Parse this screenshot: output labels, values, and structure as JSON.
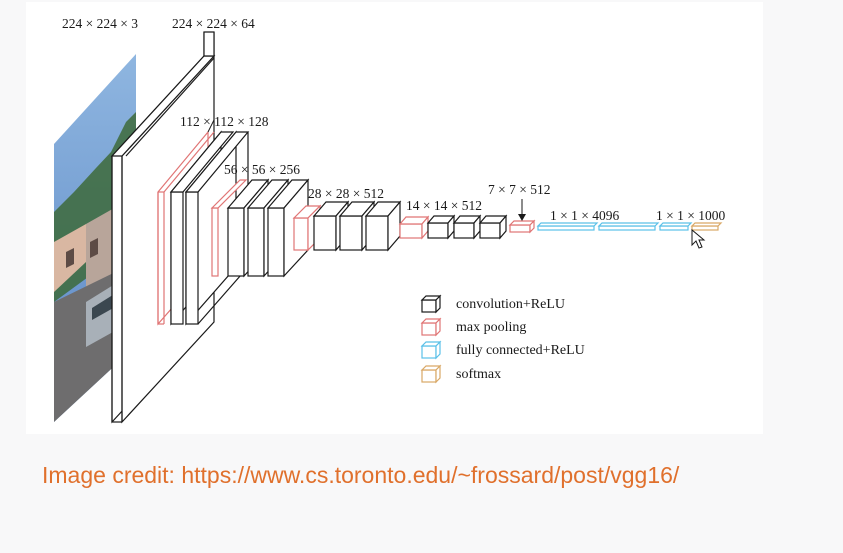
{
  "diagram": {
    "dimension_labels": {
      "input": "224 × 224 × 3",
      "conv1": "224 × 224 × 64",
      "conv2": "112 × 112 × 128",
      "conv3": "56 × 56 × 256",
      "conv4": "28 × 28 × 512",
      "conv5": "14 × 14 × 512",
      "pool5": "7 × 7 × 512",
      "fc": "1 × 1 × 4096",
      "softmax": "1 × 1 × 1000"
    },
    "legend": [
      {
        "label": "convolution+ReLU",
        "color": "#333333"
      },
      {
        "label": "max pooling",
        "color": "#e07575"
      },
      {
        "label": "fully connected+ReLU",
        "color": "#5bc0e8"
      },
      {
        "label": "softmax",
        "color": "#d9a866"
      }
    ]
  },
  "caption": {
    "credit": "Image credit: https://www.cs.toronto.edu/~frossard/post/vgg16/"
  },
  "colors": {
    "conv": "#333333",
    "pool": "#e07575",
    "fc": "#5bc0e8",
    "softmax": "#d9a866",
    "credit_text": "#e0702c"
  }
}
